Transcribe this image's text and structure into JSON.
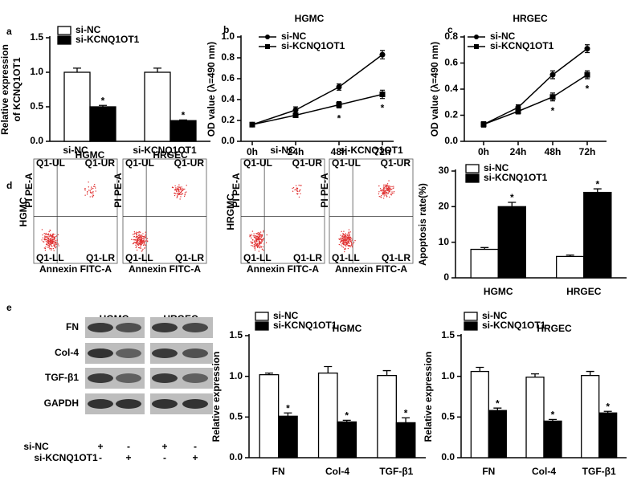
{
  "panel_labels": [
    "a",
    "b",
    "c",
    "d",
    "e"
  ],
  "chart_data": [
    {
      "type": "bar",
      "ylabel": [
        "Relative expression",
        "of KCNQ1OT1"
      ],
      "categories": [
        "HGMC",
        "HRGEC"
      ],
      "series": [
        {
          "name": "si-NC",
          "color": "#ffffff",
          "values": [
            1.0,
            1.0
          ],
          "errors": [
            0.06,
            0.06
          ]
        },
        {
          "name": "si-KCNQ1OT1",
          "color": "#000000",
          "values": [
            0.5,
            0.3
          ],
          "errors": [
            0.02,
            0.01
          ],
          "markers": [
            "*",
            "*"
          ]
        }
      ],
      "ylim": [
        0,
        1.5
      ],
      "yticks": [
        {
          "value": 0,
          "label": "0.0"
        },
        0.5,
        {
          "value": 1,
          "label": "1.0"
        },
        1.5
      ],
      "legend": "upper left"
    },
    {
      "type": "line",
      "title": "HGMC",
      "ylabel": [
        "OD value (λ=490 nm)"
      ],
      "categories": [
        "0h",
        "24h",
        "48h",
        "72h"
      ],
      "series": [
        {
          "name": "si-NC",
          "color": "#000000",
          "marker": "circle",
          "values": [
            0.16,
            0.3,
            0.52,
            0.83
          ],
          "errors": [
            0.01,
            0.03,
            0.03,
            0.04
          ]
        },
        {
          "name": "si-KCNQ1OT1",
          "color": "#000000",
          "marker": "square",
          "values": [
            0.16,
            0.25,
            0.35,
            0.45
          ],
          "errors": [
            0.01,
            0.02,
            0.03,
            0.04
          ],
          "markers": [
            null,
            null,
            "*",
            "*"
          ]
        }
      ],
      "ylim": [
        0,
        1.0
      ],
      "yticks": [
        {
          "value": 0,
          "label": "0.0"
        },
        0.2,
        0.4,
        0.6,
        0.8,
        {
          "value": 1,
          "label": "1.0"
        }
      ],
      "legend": "upper left"
    },
    {
      "type": "line",
      "title": "HRGEC",
      "ylabel": [
        "OD value (λ=490 nm)"
      ],
      "categories": [
        "0h",
        "24h",
        "48h",
        "72h"
      ],
      "series": [
        {
          "name": "si-NC",
          "color": "#000000",
          "marker": "circle",
          "values": [
            0.13,
            0.26,
            0.51,
            0.71
          ],
          "errors": [
            0.02,
            0.02,
            0.03,
            0.03
          ]
        },
        {
          "name": "si-KCNQ1OT1",
          "color": "#000000",
          "marker": "square",
          "values": [
            0.13,
            0.23,
            0.34,
            0.51
          ],
          "errors": [
            0.02,
            0.02,
            0.03,
            0.03
          ],
          "markers": [
            null,
            null,
            "*",
            "*"
          ]
        }
      ],
      "ylim": [
        0,
        0.8
      ],
      "yticks": [
        {
          "value": 0,
          "label": "0.0"
        },
        0.2,
        0.4,
        0.6,
        0.8
      ],
      "legend": "upper left"
    },
    {
      "type": "bar",
      "ylabel": [
        "Apoptosis rate(%)"
      ],
      "categories": [
        "HGMC",
        "HRGEC"
      ],
      "series": [
        {
          "name": "si-NC",
          "color": "#ffffff",
          "values": [
            8,
            6
          ],
          "errors": [
            0.5,
            0.4
          ]
        },
        {
          "name": "si-KCNQ1OT1",
          "color": "#000000",
          "values": [
            20,
            24
          ],
          "errors": [
            1.2,
            1.0
          ],
          "markers": [
            "*",
            "*"
          ]
        }
      ],
      "ylim": [
        0,
        30
      ],
      "yticks": [
        0,
        10,
        20,
        30
      ],
      "legend": "upper left"
    },
    {
      "type": "bar",
      "title": "HGMC",
      "ylabel": [
        "Relative expression"
      ],
      "categories": [
        "FN",
        "Col-4",
        "TGF-β1"
      ],
      "series": [
        {
          "name": "si-NC",
          "color": "#ffffff",
          "values": [
            1.02,
            1.04,
            1.01
          ],
          "errors": [
            0.02,
            0.08,
            0.06
          ]
        },
        {
          "name": "si-KCNQ1OT1",
          "color": "#000000",
          "values": [
            0.51,
            0.44,
            0.43
          ],
          "errors": [
            0.04,
            0.02,
            0.06
          ],
          "markers": [
            "*",
            "*",
            "*"
          ]
        }
      ],
      "ylim": [
        0,
        1.5
      ],
      "yticks": [
        {
          "value": 0,
          "label": "0.0"
        },
        0.5,
        {
          "value": 1,
          "label": "1.0"
        },
        1.5
      ],
      "legend": "upper left"
    },
    {
      "type": "bar",
      "title": "HRGEC",
      "ylabel": [
        "Relative expression"
      ],
      "categories": [
        "FN",
        "Col-4",
        "TGF-β1"
      ],
      "series": [
        {
          "name": "si-NC",
          "color": "#ffffff",
          "values": [
            1.06,
            0.99,
            1.01
          ],
          "errors": [
            0.05,
            0.04,
            0.05
          ]
        },
        {
          "name": "si-KCNQ1OT1",
          "color": "#000000",
          "values": [
            0.58,
            0.45,
            0.55
          ],
          "errors": [
            0.03,
            0.02,
            0.02
          ],
          "markers": [
            "*",
            "*",
            "*"
          ]
        }
      ],
      "ylim": [
        0,
        1.5
      ],
      "yticks": [
        {
          "value": 0,
          "label": "0.0"
        },
        0.5,
        {
          "value": 1,
          "label": "1.0"
        },
        1.5
      ],
      "legend": "upper left"
    }
  ],
  "flow": {
    "titles": [
      "si-NC",
      "si-KCNQ1OT1",
      "si-NC",
      "si-KCNQ1OT1"
    ],
    "row_labels": [
      "HGMC",
      "HRGMC"
    ],
    "quadrants": [
      "Q1-UL",
      "Q1-UR",
      "Q1-LL",
      "Q1-LR"
    ],
    "x_label": "Annexin FITC-A",
    "y_label": "PI PE-A"
  },
  "blot": {
    "groups": [
      "HGMC",
      "HRGEC"
    ],
    "rows": [
      "FN",
      "Col-4",
      "TGF-β1",
      "GAPDH"
    ],
    "conditions": [
      {
        "name": "si-NC",
        "marks": [
          "+",
          "-",
          "+",
          "-"
        ]
      },
      {
        "name": "si-KCNQ1OT1",
        "marks": [
          "-",
          "+",
          "-",
          "+"
        ]
      }
    ]
  }
}
